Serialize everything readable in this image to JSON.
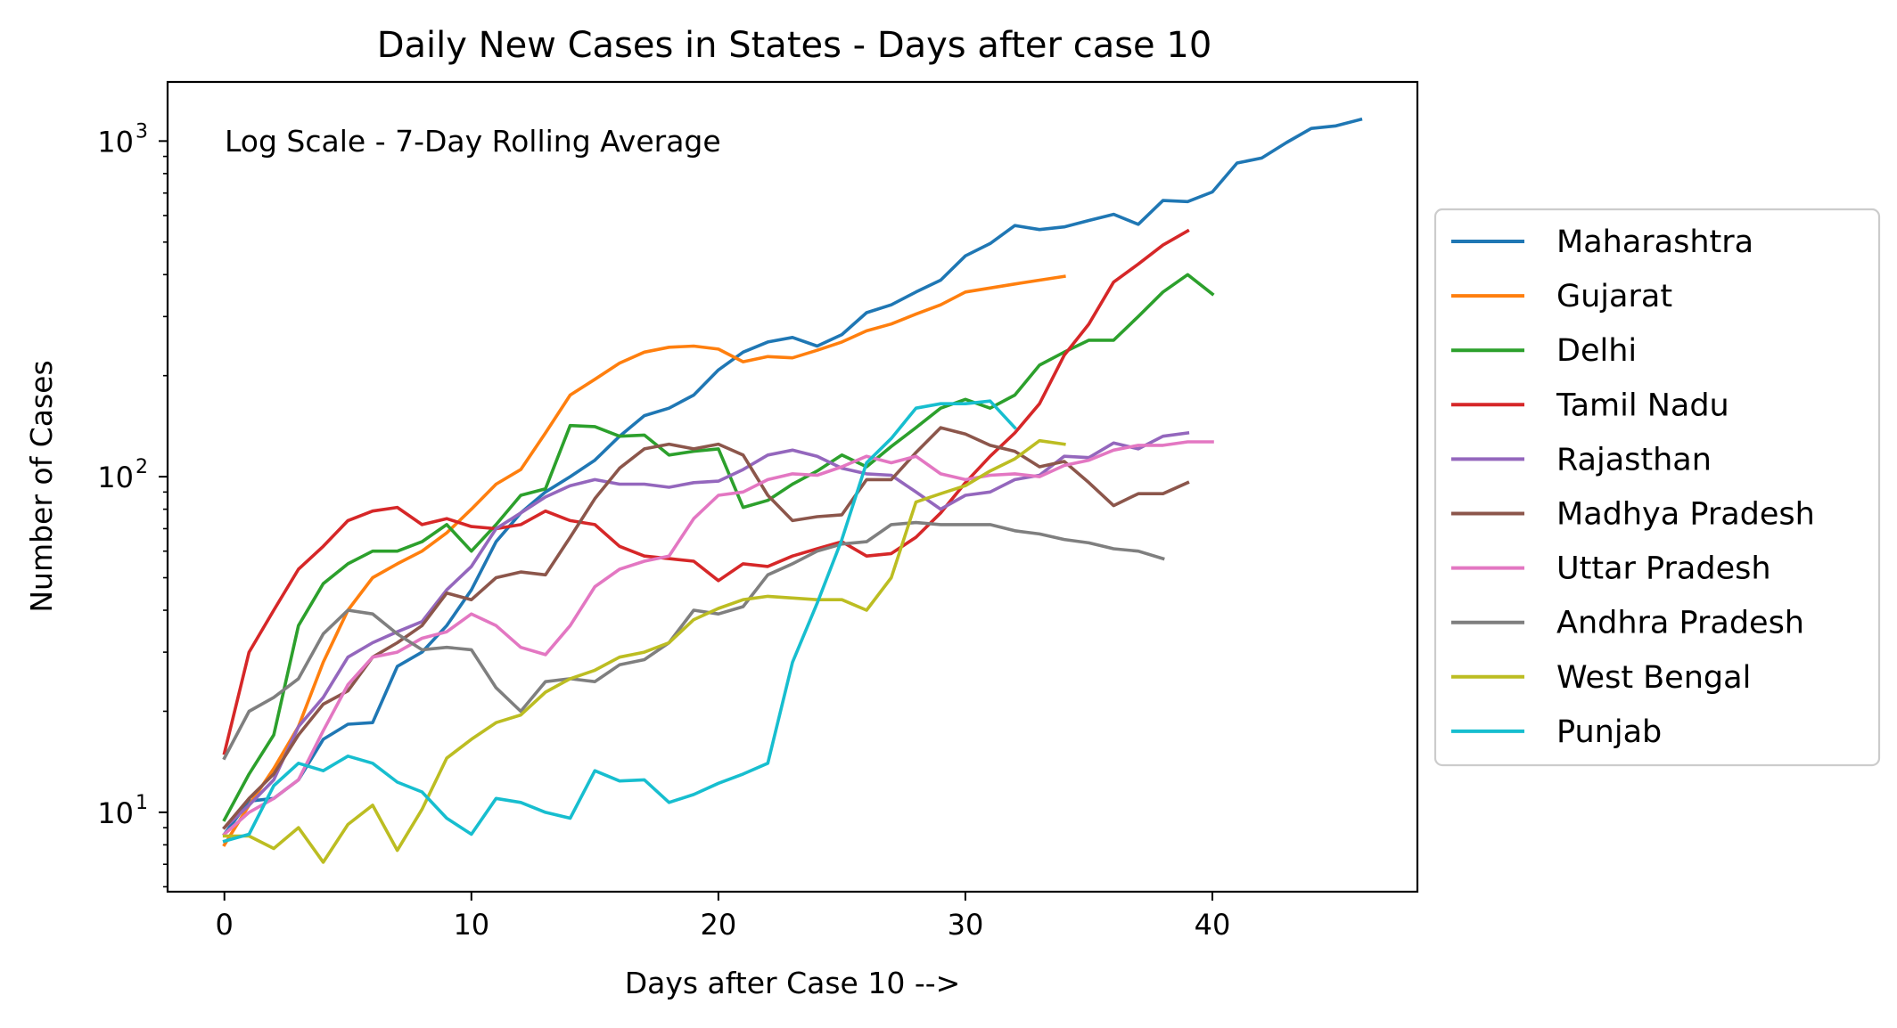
{
  "chart_data": {
    "type": "line",
    "title": "Daily New Cases in States - Days after case 10",
    "annotation": "Log Scale - 7-Day Rolling Average",
    "xlabel": "Days after Case 10 -->",
    "ylabel": "Number of Cases",
    "yscale": "log",
    "xlim": [
      -2.3,
      48.3
    ],
    "ylim": [
      5.8,
      1500
    ],
    "xticks": [
      0,
      10,
      20,
      30,
      40
    ],
    "xtick_labels": [
      "0",
      "10",
      "20",
      "30",
      "40"
    ],
    "yticks": [
      10,
      100,
      1000
    ],
    "ytick_base": "10",
    "ytick_exponents": [
      "1",
      "2",
      "3"
    ],
    "grid": false,
    "legend_position": "outside-right",
    "series": [
      {
        "name": "Maharashtra",
        "color": "#1f77b4",
        "values": [
          8.6,
          10.8,
          11.0,
          12.5,
          16.5,
          18.3,
          18.5,
          27.2,
          30.0,
          36.0,
          46.0,
          64.0,
          78.0,
          90.0,
          100.0,
          112.0,
          132.0,
          152.0,
          160.0,
          175.0,
          208.0,
          235.0,
          252.0,
          260.0,
          245.0,
          265.0,
          308.0,
          325.0,
          355.0,
          385.0,
          455.0,
          495.0,
          560.0,
          545.0,
          555.0,
          580.0,
          605.0,
          565.0,
          665.0,
          660.0,
          705.0,
          860.0,
          890.0,
          990.0,
          1090.0,
          1110.0,
          1160.0
        ]
      },
      {
        "name": "Gujarat",
        "color": "#ff7f0e",
        "values": [
          8.0,
          10.5,
          13.5,
          18.0,
          28.0,
          40.0,
          50.0,
          55.0,
          60.0,
          68.0,
          80.0,
          95.0,
          105.0,
          135.0,
          175.0,
          195.0,
          218.0,
          235.0,
          243.0,
          245.0,
          240.0,
          220.0,
          228.0,
          226.0,
          238.0,
          252.0,
          272.0,
          285.0,
          305.0,
          325.0,
          355.0,
          365.0,
          375.0,
          385.0,
          395.0
        ]
      },
      {
        "name": "Delhi",
        "color": "#2ca02c",
        "values": [
          9.5,
          13.0,
          17.0,
          36.0,
          48.0,
          55.0,
          60.0,
          60.0,
          64.0,
          72.0,
          60.0,
          72.0,
          88.0,
          92.0,
          142.0,
          141.0,
          132.0,
          133.0,
          116.0,
          119.0,
          121.0,
          81.0,
          85.0,
          95.0,
          104.0,
          116.0,
          107.0,
          123.0,
          140.0,
          160.0,
          170.0,
          160.0,
          175.0,
          215.0,
          235.0,
          255.0,
          255.0,
          300.0,
          355.0,
          400.0,
          350.0
        ]
      },
      {
        "name": "Tamil Nadu",
        "color": "#d62728",
        "values": [
          15.0,
          30.0,
          40.0,
          53.0,
          62.0,
          74.0,
          79.0,
          81.0,
          72.0,
          75.0,
          71.0,
          70.0,
          72.0,
          79.0,
          74.0,
          72.0,
          62.0,
          58.0,
          57.0,
          56.0,
          49.0,
          55.0,
          54.0,
          58.0,
          61.0,
          64.0,
          58.0,
          59.0,
          66.0,
          78.0,
          96.0,
          115.0,
          135.0,
          165.0,
          230.0,
          285.0,
          380.0,
          430.0,
          490.0,
          540.0
        ]
      },
      {
        "name": "Rajasthan",
        "color": "#9467bd",
        "values": [
          9.0,
          10.5,
          12.5,
          18.0,
          22.0,
          29.0,
          32.0,
          34.5,
          37.0,
          46.0,
          54.0,
          70.0,
          78.0,
          87.0,
          94.0,
          98.0,
          95.0,
          95.0,
          93.0,
          96.0,
          97.0,
          105.0,
          116.0,
          120.0,
          115.0,
          106.0,
          102.0,
          101.0,
          90.0,
          80.0,
          88.0,
          90.0,
          98.0,
          101.0,
          115.0,
          114.0,
          126.0,
          121.0,
          132.0,
          135.0
        ]
      },
      {
        "name": "Madhya Pradesh",
        "color": "#8c564b",
        "values": [
          9.0,
          11.0,
          13.0,
          17.0,
          21.0,
          23.0,
          29.0,
          32.0,
          36.0,
          45.0,
          43.0,
          50.0,
          52.0,
          51.0,
          66.0,
          86.0,
          106.0,
          121.0,
          125.0,
          121.0,
          125.0,
          116.0,
          88.0,
          74.0,
          76.0,
          77.0,
          98.0,
          98.0,
          118.0,
          140.0,
          134.0,
          124.0,
          119.0,
          107.0,
          111.0,
          96.0,
          82.0,
          89.0,
          89.0,
          96.0
        ]
      },
      {
        "name": "Uttar Pradesh",
        "color": "#e377c2",
        "values": [
          8.6,
          10.0,
          11.0,
          12.5,
          17.5,
          24.0,
          29.0,
          30.0,
          33.0,
          34.5,
          39.0,
          36.0,
          31.0,
          29.5,
          36.0,
          47.0,
          53.0,
          56.0,
          58.0,
          75.0,
          88.0,
          90.0,
          98.0,
          102.0,
          101.0,
          107.0,
          115.0,
          110.0,
          115.0,
          102.0,
          98.0,
          101.0,
          102.0,
          100.0,
          108.0,
          112.0,
          120.0,
          124.0,
          124.0,
          127.0,
          127.0
        ]
      },
      {
        "name": "Andhra Pradesh",
        "color": "#7f7f7f",
        "values": [
          14.5,
          20.0,
          22.0,
          25.0,
          34.0,
          40.0,
          39.0,
          34.0,
          30.5,
          31.0,
          30.5,
          23.5,
          20.0,
          24.5,
          25.0,
          24.5,
          27.5,
          28.5,
          32.0,
          40.0,
          39.0,
          41.0,
          51.0,
          55.0,
          60.0,
          63.0,
          64.0,
          72.0,
          73.0,
          72.0,
          72.0,
          72.0,
          69.0,
          67.5,
          65.0,
          63.5,
          61.0,
          60.0,
          57.0
        ]
      },
      {
        "name": "West Bengal",
        "color": "#bcbd22",
        "values": [
          8.5,
          8.5,
          7.8,
          9.0,
          7.1,
          9.2,
          10.5,
          7.7,
          10.2,
          14.5,
          16.5,
          18.5,
          19.5,
          22.8,
          25.0,
          26.5,
          29.0,
          30.0,
          32.0,
          37.5,
          40.5,
          43.0,
          44.0,
          43.5,
          43.0,
          43.0,
          40.0,
          50.0,
          84.0,
          89.0,
          94.0,
          104.0,
          113.0,
          128.0,
          125.0
        ]
      },
      {
        "name": "Punjab",
        "color": "#17becf",
        "values": [
          8.2,
          8.6,
          12.0,
          14.0,
          13.3,
          14.7,
          14.0,
          12.3,
          11.5,
          9.6,
          8.6,
          11.0,
          10.7,
          10.0,
          9.6,
          13.3,
          12.4,
          12.5,
          10.7,
          11.3,
          12.2,
          13.0,
          14.0,
          28.0,
          42.0,
          65.0,
          110.0,
          130.0,
          160.0,
          165.0,
          165.0,
          168.0,
          140.0
        ]
      }
    ]
  }
}
